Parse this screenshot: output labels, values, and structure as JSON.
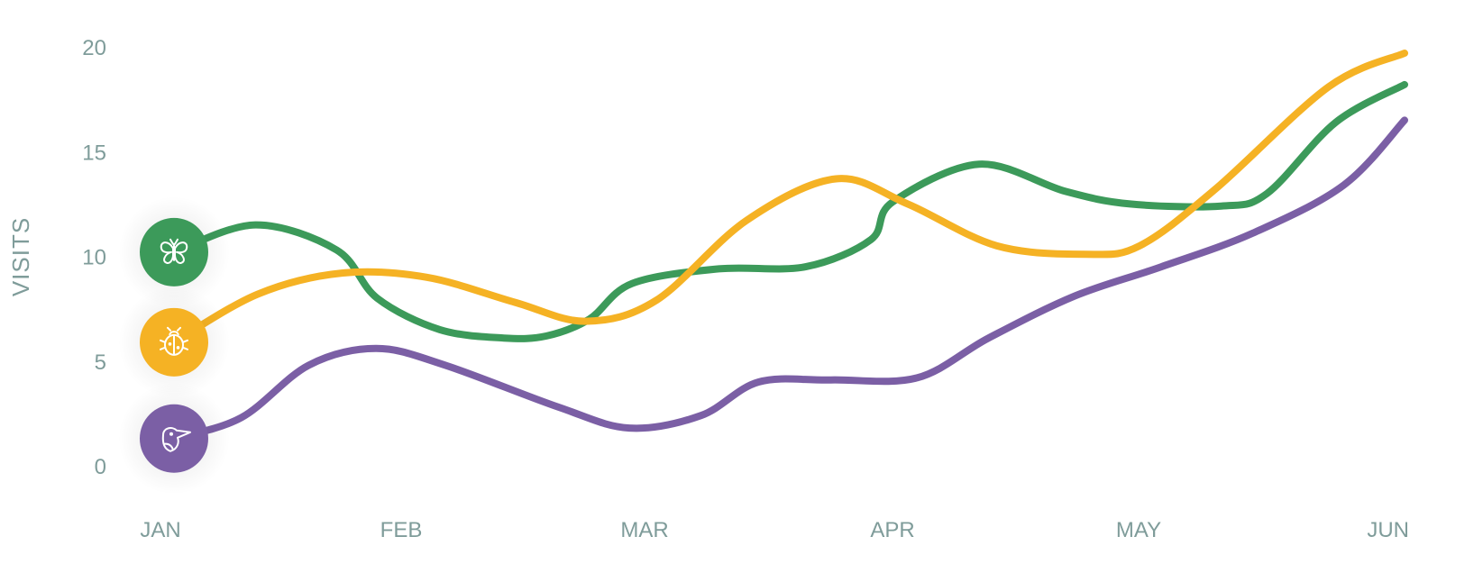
{
  "chart_data": {
    "type": "line",
    "ylabel": "VISITS",
    "xlabel": "",
    "title": "",
    "categories": [
      "JAN",
      "FEB",
      "MAR",
      "APR",
      "MAY",
      "JUN"
    ],
    "yticks": [
      "0",
      "5",
      "10",
      "15",
      "20"
    ],
    "ylim": [
      0,
      20
    ],
    "grid": false,
    "legend": "none",
    "series": [
      {
        "icon": "butterfly-icon",
        "color": "#3c9a5a",
        "points": [
          [
            0,
            10.2
          ],
          [
            0.4,
            11.5
          ],
          [
            0.8,
            10.3
          ],
          [
            1.0,
            8.0
          ],
          [
            1.3,
            6.5
          ],
          [
            1.6,
            6.1
          ],
          [
            1.8,
            6.2
          ],
          [
            2.0,
            7.0
          ],
          [
            2.2,
            8.7
          ],
          [
            2.6,
            9.4
          ],
          [
            3.0,
            9.5
          ],
          [
            3.3,
            10.8
          ],
          [
            3.4,
            12.6
          ],
          [
            3.8,
            14.4
          ],
          [
            4.2,
            13.1
          ],
          [
            4.5,
            12.5
          ],
          [
            4.9,
            12.4
          ],
          [
            5.1,
            13.0
          ],
          [
            5.4,
            16.4
          ],
          [
            5.7,
            18.2
          ]
        ]
      },
      {
        "icon": "ladybug-icon",
        "color": "#f5b224",
        "points": [
          [
            0,
            5.9
          ],
          [
            0.5,
            8.2
          ],
          [
            1.0,
            9.2
          ],
          [
            1.5,
            9.0
          ],
          [
            2.0,
            7.8
          ],
          [
            2.4,
            6.9
          ],
          [
            2.8,
            7.9
          ],
          [
            3.3,
            11.7
          ],
          [
            3.8,
            13.7
          ],
          [
            4.2,
            12.5
          ],
          [
            4.7,
            10.5
          ],
          [
            5.2,
            10.1
          ],
          [
            5.5,
            10.5
          ],
          [
            5.9,
            13.2
          ],
          [
            6.5,
            18.1
          ],
          [
            6.9,
            19.7
          ]
        ]
      },
      {
        "icon": "bird-icon",
        "color": "#7b5fa5",
        "points": [
          [
            0,
            1.3
          ],
          [
            0.5,
            2.3
          ],
          [
            1.0,
            4.8
          ],
          [
            1.5,
            5.6
          ],
          [
            2.0,
            4.8
          ],
          [
            2.8,
            2.8
          ],
          [
            3.3,
            1.8
          ],
          [
            3.8,
            2.4
          ],
          [
            4.2,
            4.0
          ],
          [
            4.7,
            4.1
          ],
          [
            5.3,
            4.2
          ],
          [
            5.8,
            6.1
          ],
          [
            6.4,
            8.1
          ],
          [
            7.0,
            9.5
          ],
          [
            7.6,
            11.1
          ],
          [
            8.2,
            13.4
          ],
          [
            8.6,
            16.5
          ]
        ]
      }
    ]
  }
}
